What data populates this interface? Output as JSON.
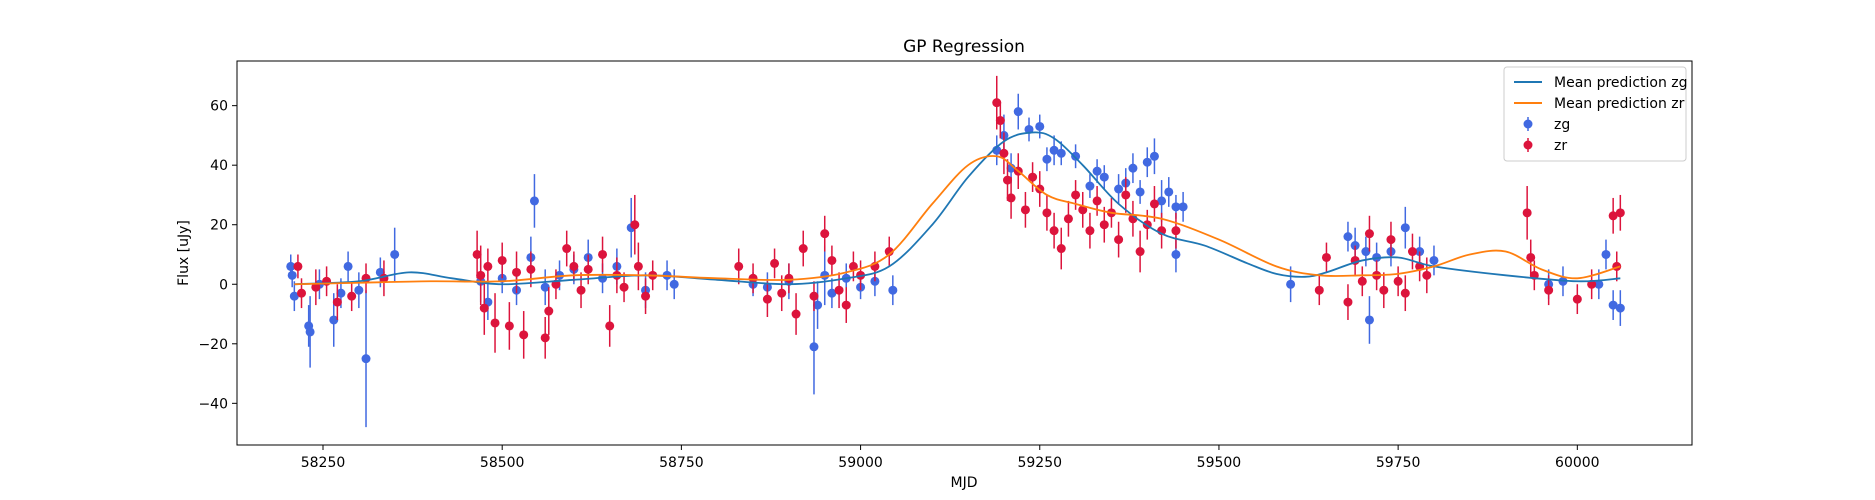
{
  "chart_data": {
    "type": "scatter",
    "title": "GP Regression",
    "xlabel": "MJD",
    "ylabel": "Flux [uJy]",
    "xlim": [
      58130,
      60160
    ],
    "ylim": [
      -54,
      75
    ],
    "xticks": [
      58250,
      58500,
      58750,
      59000,
      59250,
      59500,
      59750,
      60000
    ],
    "yticks": [
      -40,
      -20,
      0,
      20,
      40,
      60
    ],
    "legend_position": "upper right",
    "colors": {
      "zg_line": "#1f77b4",
      "zr_line": "#ff7f0e",
      "zg_points": "#4169e1",
      "zr_points": "#dc143c"
    },
    "lines": [
      {
        "name": "Mean prediction zg",
        "x": [
          58210,
          58300,
          58370,
          58430,
          58500,
          58600,
          58700,
          58800,
          58900,
          58980,
          59040,
          59100,
          59150,
          59200,
          59240,
          59270,
          59310,
          59360,
          59420,
          59480,
          59540,
          59580,
          59620,
          59650,
          59700,
          59750,
          59800,
          59900,
          60000,
          60060
        ],
        "y": [
          0,
          1,
          4,
          2,
          0,
          1.5,
          3,
          1.5,
          0,
          2,
          6,
          20,
          36,
          48,
          51,
          49,
          40,
          27,
          17,
          13,
          7,
          3.5,
          2.5,
          4,
          8,
          9,
          6,
          3,
          1,
          2
        ]
      },
      {
        "name": "Mean prediction zr",
        "x": [
          58210,
          58300,
          58400,
          58500,
          58600,
          58700,
          58800,
          58900,
          58980,
          59040,
          59100,
          59150,
          59190,
          59220,
          59260,
          59300,
          59350,
          59420,
          59500,
          59580,
          59640,
          59700,
          59750,
          59800,
          59850,
          59900,
          59950,
          60000,
          60060
        ],
        "y": [
          0,
          0.5,
          1,
          1,
          3,
          3,
          2,
          1.5,
          4,
          10,
          27,
          40,
          43,
          38,
          30,
          27,
          24,
          22,
          15,
          6,
          3,
          3,
          3.5,
          6,
          10,
          11,
          5,
          2,
          6
        ]
      }
    ],
    "series": [
      {
        "name": "zg",
        "points": [
          [
            58205,
            6,
            4
          ],
          [
            58207,
            3,
            4
          ],
          [
            58210,
            -4,
            5
          ],
          [
            58230,
            -14,
            7
          ],
          [
            58232,
            -16,
            12
          ],
          [
            58245,
            0,
            5
          ],
          [
            58265,
            -12,
            9
          ],
          [
            58275,
            -3,
            5
          ],
          [
            58285,
            6,
            5
          ],
          [
            58300,
            -2,
            6
          ],
          [
            58310,
            -25,
            23
          ],
          [
            58330,
            4,
            5
          ],
          [
            58350,
            10,
            9
          ],
          [
            58470,
            1,
            7
          ],
          [
            58480,
            -6,
            6
          ],
          [
            58500,
            2,
            5
          ],
          [
            58520,
            -2,
            5
          ],
          [
            58540,
            9,
            7
          ],
          [
            58545,
            28,
            9
          ],
          [
            58560,
            -1,
            6
          ],
          [
            58580,
            3,
            5
          ],
          [
            58600,
            5,
            5
          ],
          [
            58620,
            9,
            6
          ],
          [
            58640,
            2,
            5
          ],
          [
            58660,
            6,
            6
          ],
          [
            58680,
            19,
            10
          ],
          [
            58700,
            -2,
            6
          ],
          [
            58730,
            3,
            5
          ],
          [
            58740,
            0,
            5
          ],
          [
            58850,
            0,
            4
          ],
          [
            58870,
            -1,
            5
          ],
          [
            58900,
            1,
            6
          ],
          [
            58935,
            -21,
            16
          ],
          [
            58940,
            -7,
            8
          ],
          [
            58950,
            3,
            10
          ],
          [
            58960,
            -3,
            5
          ],
          [
            58980,
            2,
            5
          ],
          [
            59000,
            -1,
            4
          ],
          [
            59020,
            1,
            5
          ],
          [
            59045,
            -2,
            5
          ],
          [
            59190,
            45,
            5
          ],
          [
            59200,
            50,
            7
          ],
          [
            59210,
            39,
            5
          ],
          [
            59220,
            58,
            6
          ],
          [
            59235,
            52,
            4
          ],
          [
            59250,
            53,
            4
          ],
          [
            59260,
            42,
            4
          ],
          [
            59270,
            45,
            5
          ],
          [
            59280,
            44,
            4
          ],
          [
            59300,
            43,
            4
          ],
          [
            59320,
            33,
            4
          ],
          [
            59330,
            38,
            4
          ],
          [
            59340,
            36,
            4
          ],
          [
            59360,
            32,
            5
          ],
          [
            59370,
            34,
            5
          ],
          [
            59380,
            39,
            5
          ],
          [
            59390,
            31,
            4
          ],
          [
            59400,
            41,
            5
          ],
          [
            59410,
            43,
            6
          ],
          [
            59420,
            28,
            7
          ],
          [
            59430,
            31,
            5
          ],
          [
            59440,
            26,
            4
          ],
          [
            59440,
            10,
            6
          ],
          [
            59450,
            26,
            5
          ],
          [
            59600,
            0,
            6
          ],
          [
            59680,
            16,
            5
          ],
          [
            59690,
            13,
            6
          ],
          [
            59705,
            11,
            5
          ],
          [
            59710,
            -12,
            8
          ],
          [
            59720,
            9,
            5
          ],
          [
            59740,
            11,
            5
          ],
          [
            59760,
            19,
            7
          ],
          [
            59780,
            11,
            5
          ],
          [
            59800,
            8,
            5
          ],
          [
            59960,
            0,
            5
          ],
          [
            59980,
            1,
            5
          ],
          [
            60030,
            0,
            5
          ],
          [
            60040,
            10,
            5
          ],
          [
            60050,
            -7,
            5
          ],
          [
            60060,
            -8,
            6
          ]
        ]
      },
      {
        "name": "zr",
        "points": [
          [
            58215,
            6,
            4
          ],
          [
            58220,
            -3,
            5
          ],
          [
            58240,
            -1,
            6
          ],
          [
            58255,
            1,
            5
          ],
          [
            58270,
            -6,
            6
          ],
          [
            58290,
            -4,
            5
          ],
          [
            58310,
            2,
            5
          ],
          [
            58335,
            2,
            6
          ],
          [
            58465,
            10,
            8
          ],
          [
            58470,
            3,
            10
          ],
          [
            58475,
            -8,
            9
          ],
          [
            58480,
            6,
            6
          ],
          [
            58490,
            -13,
            10
          ],
          [
            58500,
            8,
            6
          ],
          [
            58510,
            -14,
            8
          ],
          [
            58520,
            4,
            7
          ],
          [
            58530,
            -17,
            8
          ],
          [
            58540,
            5,
            6
          ],
          [
            58560,
            -18,
            7
          ],
          [
            58565,
            -9,
            8
          ],
          [
            58575,
            0,
            5
          ],
          [
            58590,
            12,
            6
          ],
          [
            58600,
            6,
            5
          ],
          [
            58610,
            -2,
            6
          ],
          [
            58620,
            5,
            5
          ],
          [
            58640,
            10,
            6
          ],
          [
            58650,
            -14,
            7
          ],
          [
            58660,
            3,
            6
          ],
          [
            58670,
            -1,
            5
          ],
          [
            58685,
            20,
            10
          ],
          [
            58690,
            6,
            8
          ],
          [
            58700,
            -4,
            6
          ],
          [
            58710,
            3,
            5
          ],
          [
            58830,
            6,
            6
          ],
          [
            58850,
            2,
            5
          ],
          [
            58870,
            -5,
            6
          ],
          [
            58880,
            7,
            5
          ],
          [
            58890,
            -3,
            6
          ],
          [
            58900,
            2,
            5
          ],
          [
            58910,
            -10,
            7
          ],
          [
            58920,
            12,
            6
          ],
          [
            58935,
            -4,
            5
          ],
          [
            58950,
            17,
            6
          ],
          [
            58960,
            8,
            5
          ],
          [
            58970,
            -2,
            6
          ],
          [
            58980,
            -7,
            6
          ],
          [
            58990,
            6,
            5
          ],
          [
            59000,
            3,
            5
          ],
          [
            59020,
            6,
            5
          ],
          [
            59040,
            11,
            5
          ],
          [
            59190,
            61,
            9
          ],
          [
            59195,
            55,
            6
          ],
          [
            59200,
            44,
            7
          ],
          [
            59205,
            35,
            7
          ],
          [
            59210,
            29,
            7
          ],
          [
            59220,
            38,
            6
          ],
          [
            59230,
            25,
            6
          ],
          [
            59240,
            36,
            5
          ],
          [
            59250,
            32,
            6
          ],
          [
            59260,
            24,
            6
          ],
          [
            59270,
            18,
            6
          ],
          [
            59280,
            12,
            7
          ],
          [
            59290,
            22,
            6
          ],
          [
            59300,
            30,
            5
          ],
          [
            59310,
            25,
            6
          ],
          [
            59320,
            18,
            6
          ],
          [
            59330,
            28,
            5
          ],
          [
            59340,
            20,
            6
          ],
          [
            59350,
            24,
            5
          ],
          [
            59360,
            15,
            6
          ],
          [
            59370,
            30,
            6
          ],
          [
            59380,
            22,
            6
          ],
          [
            59390,
            11,
            7
          ],
          [
            59400,
            20,
            5
          ],
          [
            59410,
            27,
            6
          ],
          [
            59420,
            18,
            6
          ],
          [
            59440,
            18,
            6
          ],
          [
            59640,
            -2,
            5
          ],
          [
            59650,
            9,
            5
          ],
          [
            59680,
            -6,
            6
          ],
          [
            59690,
            8,
            5
          ],
          [
            59700,
            1,
            5
          ],
          [
            59710,
            17,
            6
          ],
          [
            59720,
            3,
            5
          ],
          [
            59730,
            -2,
            6
          ],
          [
            59740,
            15,
            6
          ],
          [
            59750,
            1,
            5
          ],
          [
            59760,
            -3,
            6
          ],
          [
            59770,
            11,
            6
          ],
          [
            59780,
            6,
            5
          ],
          [
            59790,
            3,
            6
          ],
          [
            59930,
            24,
            9
          ],
          [
            59935,
            9,
            6
          ],
          [
            59940,
            3,
            5
          ],
          [
            59960,
            -2,
            5
          ],
          [
            60000,
            -5,
            5
          ],
          [
            60020,
            0,
            5
          ],
          [
            60050,
            23,
            6
          ],
          [
            60055,
            6,
            5
          ],
          [
            60060,
            24,
            6
          ]
        ]
      }
    ]
  }
}
